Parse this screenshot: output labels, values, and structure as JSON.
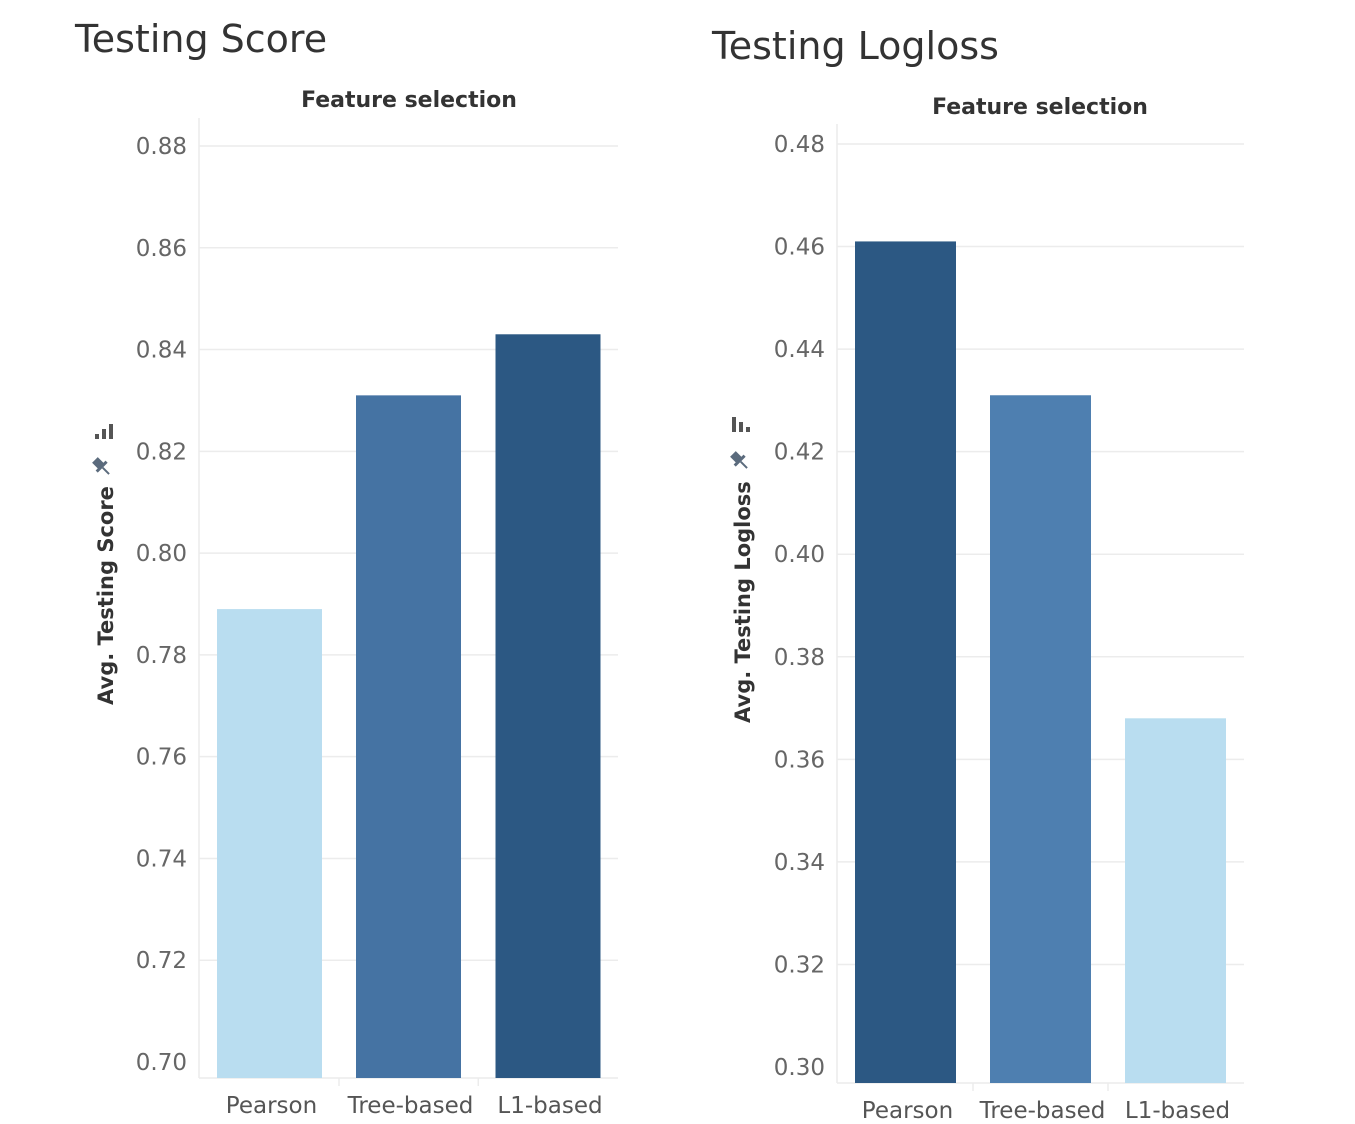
{
  "chart_data": [
    {
      "type": "bar",
      "title": "Testing Score",
      "header": "Feature selection",
      "ylabel": "Avg. Testing Score",
      "categories": [
        "Pearson",
        "Tree-based",
        "L1-based"
      ],
      "values": [
        0.789,
        0.831,
        0.843
      ],
      "bar_colors": [
        "#b9ddf0",
        "#4573a3",
        "#2c5883"
      ],
      "ylim": [
        0.7,
        0.88
      ],
      "yticks": [
        "0.70",
        "0.72",
        "0.74",
        "0.76",
        "0.78",
        "0.80",
        "0.82",
        "0.84",
        "0.86",
        "0.88"
      ],
      "sort_icon": "sort-ascending-icon",
      "pin_icon": "pin-icon",
      "grid": true
    },
    {
      "type": "bar",
      "title": "Testing Logloss",
      "header": "Feature selection",
      "ylabel": "Avg. Testing Logloss",
      "categories": [
        "Pearson",
        "Tree-based",
        "L1-based"
      ],
      "values": [
        0.461,
        0.431,
        0.368
      ],
      "bar_colors": [
        "#2c5883",
        "#4e7fb0",
        "#b9ddf0"
      ],
      "ylim": [
        0.3,
        0.48
      ],
      "yticks": [
        "0.30",
        "0.32",
        "0.34",
        "0.36",
        "0.38",
        "0.40",
        "0.42",
        "0.44",
        "0.46",
        "0.48"
      ],
      "sort_icon": "sort-descending-icon",
      "pin_icon": "pin-icon",
      "grid": true
    }
  ]
}
